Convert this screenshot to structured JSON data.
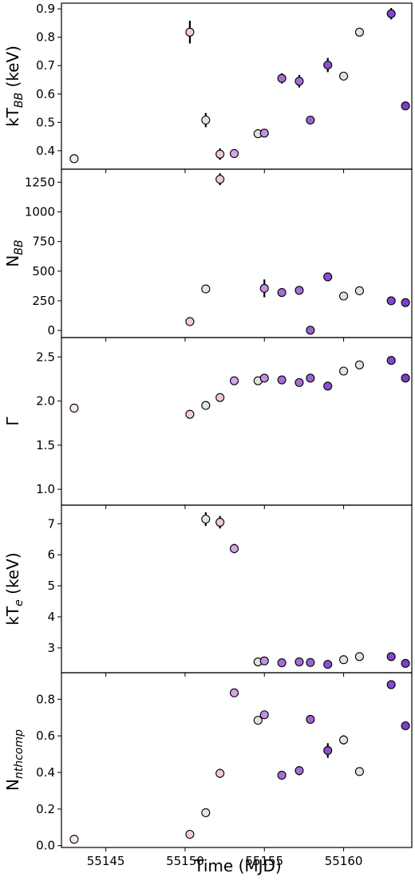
{
  "figure": {
    "x_axis_label": "Time (MJD)"
  },
  "chart_data": {
    "type": "scatter",
    "shared_x": true,
    "xlim": [
      55142.2,
      55164.3
    ],
    "x_ticks": [
      55145,
      55150,
      55155,
      55160
    ],
    "x_tick_labels": [
      "55145",
      "55150",
      "55155",
      "55160"
    ],
    "xlabel": "Time (MJD)",
    "x": [
      55143.0,
      55150.3,
      55151.3,
      55152.2,
      55153.1,
      55154.6,
      55155.0,
      55156.1,
      55157.2,
      55157.9,
      55159.0,
      55160.0,
      55161.0,
      55163.0,
      55163.9
    ],
    "marker_colors": [
      "#fbe6ef",
      "#f6c9dc",
      "#dfe5e3",
      "#f0c4e0",
      "#d9a4e6",
      "#dfe3e1",
      "#c490e6",
      "#a86cd8",
      "#a86cd8",
      "#9c62d4",
      "#8b4fcf",
      "#dfe3e1",
      "#dfe3e1",
      "#8646cd",
      "#7e3fc8"
    ],
    "panels": [
      {
        "key": "kT_BB",
        "ylabel_main": "kT",
        "ylabel_sub": "BB",
        "ylabel_tail": " (keV)",
        "ylim": [
          0.335,
          0.92
        ],
        "yticks": [
          0.4,
          0.5,
          0.6,
          0.7,
          0.8,
          0.9
        ],
        "ytick_labels": [
          "0.4",
          "0.5",
          "0.6",
          "0.7",
          "0.8",
          "0.9"
        ],
        "values": [
          0.372,
          0.818,
          0.508,
          0.388,
          0.39,
          0.46,
          0.462,
          0.655,
          0.645,
          0.508,
          0.702,
          0.663,
          0.818,
          0.883,
          0.558
        ],
        "errors": [
          0,
          0.04,
          0.025,
          0.02,
          0,
          0,
          0,
          0.018,
          0.022,
          0,
          0.025,
          0.012,
          0.015,
          0.02,
          0
        ]
      },
      {
        "key": "N_BB",
        "ylabel_main": "N",
        "ylabel_sub": "BB",
        "ylabel_tail": "",
        "ylim": [
          -60,
          1360
        ],
        "yticks": [
          0,
          250,
          500,
          750,
          1000,
          1250
        ],
        "ytick_labels": [
          "0",
          "250",
          "500",
          "750",
          "1000",
          "1250"
        ],
        "values": [
          null,
          75,
          350,
          1275,
          null,
          null,
          355,
          320,
          338,
          2,
          452,
          290,
          335,
          250,
          235
        ],
        "errors": [
          0,
          0,
          0,
          50,
          0,
          0,
          75,
          0,
          0,
          0,
          0,
          0,
          0,
          0,
          0
        ]
      },
      {
        "key": "Gamma",
        "ylabel_main": "Γ",
        "ylabel_sub": "",
        "ylabel_tail": "",
        "ylim": [
          0.82,
          2.72
        ],
        "yticks": [
          1.0,
          1.5,
          2.0,
          2.5
        ],
        "ytick_labels": [
          "1.0",
          "1.5",
          "2.0",
          "2.5"
        ],
        "values": [
          1.92,
          1.85,
          1.95,
          2.04,
          2.23,
          2.23,
          2.26,
          2.24,
          2.21,
          2.26,
          2.17,
          2.34,
          2.41,
          2.46,
          2.26
        ],
        "errors": [
          0,
          0,
          0,
          0,
          0,
          0,
          0,
          0,
          0,
          0,
          0,
          0,
          0,
          0,
          0
        ]
      },
      {
        "key": "kT_e",
        "ylabel_main": "kT",
        "ylabel_sub": "e",
        "ylabel_tail": " (keV)",
        "ylim": [
          2.2,
          7.6
        ],
        "yticks": [
          3,
          4,
          5,
          6,
          7
        ],
        "ytick_labels": [
          "3",
          "4",
          "5",
          "6",
          "7"
        ],
        "values": [
          null,
          null,
          7.15,
          7.05,
          6.2,
          2.55,
          2.58,
          2.52,
          2.55,
          2.53,
          2.47,
          2.62,
          2.72,
          2.72,
          2.5
        ],
        "errors": [
          0,
          0,
          0.22,
          0.2,
          0.15,
          0,
          0,
          0,
          0,
          0,
          0,
          0,
          0,
          0,
          0
        ]
      },
      {
        "key": "N_nthcomp",
        "ylabel_main": "N",
        "ylabel_sub": "nthcomp",
        "ylabel_tail": "",
        "ylim": [
          -0.01,
          0.945
        ],
        "yticks": [
          0.0,
          0.2,
          0.4,
          0.6,
          0.8
        ],
        "ytick_labels": [
          "0.0",
          "0.2",
          "0.4",
          "0.6",
          "0.8"
        ],
        "values": [
          0.035,
          0.062,
          0.18,
          0.395,
          0.835,
          0.685,
          0.715,
          0.385,
          0.41,
          0.69,
          0.52,
          0.578,
          0.405,
          0.88,
          0.655
        ],
        "errors": [
          0,
          0,
          0,
          0.025,
          0,
          0,
          0,
          0,
          0.025,
          0,
          0.04,
          0.025,
          0,
          0,
          0
        ]
      }
    ]
  }
}
